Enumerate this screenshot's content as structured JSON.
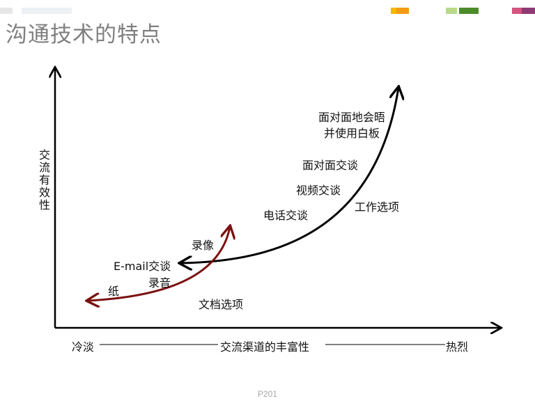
{
  "title": "沟通技术的特点",
  "y_axis_label": "交流有效性",
  "x_axis": {
    "left": "冷淡",
    "middle": "交流渠道的丰富性",
    "right": "热烈"
  },
  "curves": {
    "black_curve_color": "#000000",
    "red_curve_color": "#7b1010"
  },
  "labels": {
    "face_whiteboard_line1": "面对面地会晤",
    "face_whiteboard_line2": "并使用白板",
    "face_to_face": "面对面交谈",
    "video": "视频交谈",
    "work_options": "工作选项",
    "phone": "电话交谈",
    "recording": "录像",
    "email": "E-mail交谈",
    "audio": "录音",
    "paper": "纸",
    "document_options": "文档选项"
  },
  "decor_colors": {
    "gray_light": "#e6e6e6",
    "gray_lighter": "#eef1f4",
    "orange_1": "#f5b800",
    "orange_2": "#f39c12",
    "green_light": "#b8d98a",
    "green_dark": "#4b8c2a",
    "pink": "#d4547f",
    "purple": "#8e3a74"
  },
  "footer": "P201"
}
